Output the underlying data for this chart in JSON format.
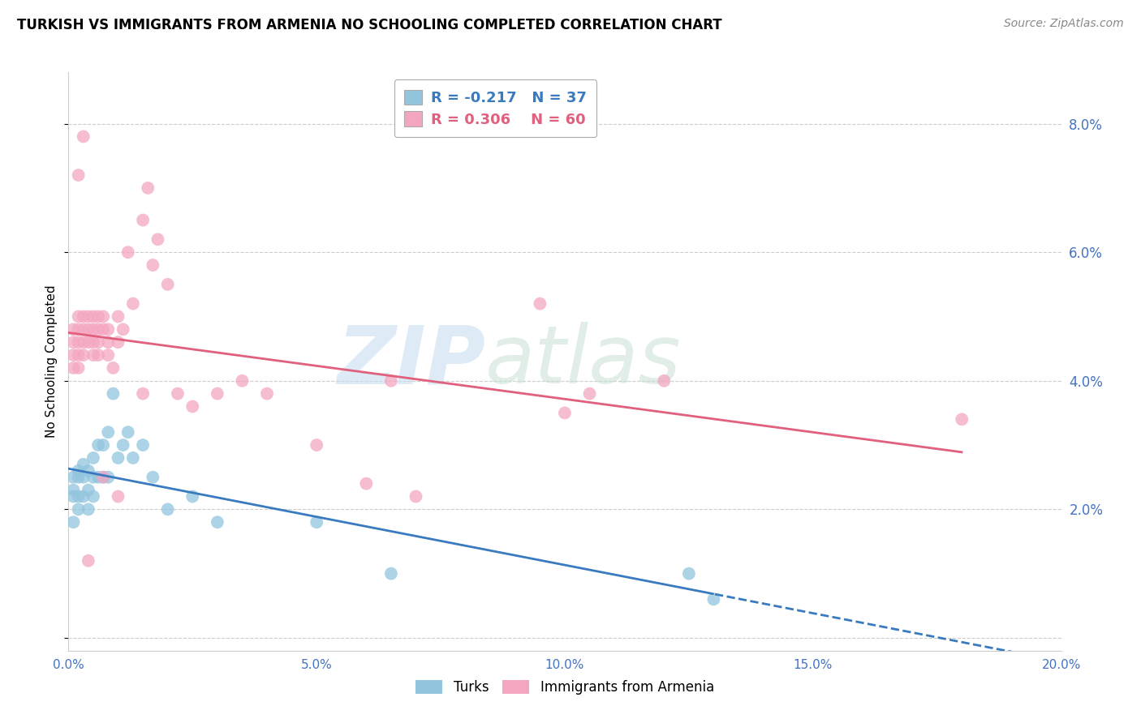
{
  "title": "TURKISH VS IMMIGRANTS FROM ARMENIA NO SCHOOLING COMPLETED CORRELATION CHART",
  "source": "Source: ZipAtlas.com",
  "ylabel": "No Schooling Completed",
  "xlim": [
    0.0,
    0.2
  ],
  "ylim": [
    -0.002,
    0.088
  ],
  "ytick_vals": [
    0.0,
    0.02,
    0.04,
    0.06,
    0.08
  ],
  "ytick_labels": [
    "",
    "2.0%",
    "4.0%",
    "6.0%",
    "8.0%"
  ],
  "xtick_vals": [
    0.0,
    0.05,
    0.1,
    0.15,
    0.2
  ],
  "xtick_labels": [
    "0.0%",
    "5.0%",
    "10.0%",
    "15.0%",
    "20.0%"
  ],
  "blue_R": -0.217,
  "blue_N": 37,
  "pink_R": 0.306,
  "pink_N": 60,
  "blue_color": "#92c5de",
  "pink_color": "#f4a6c0",
  "trend_blue_color": "#3a7abf",
  "trend_pink_color": "#e0607e",
  "tick_color": "#4472c4",
  "watermark": "ZIPatlas",
  "blue_label": "Turks",
  "pink_label": "Immigrants from Armenia",
  "blue_x": [
    0.001,
    0.001,
    0.001,
    0.001,
    0.002,
    0.002,
    0.002,
    0.002,
    0.003,
    0.003,
    0.003,
    0.004,
    0.004,
    0.004,
    0.005,
    0.005,
    0.005,
    0.006,
    0.006,
    0.007,
    0.007,
    0.008,
    0.008,
    0.009,
    0.01,
    0.011,
    0.012,
    0.013,
    0.015,
    0.017,
    0.02,
    0.025,
    0.03,
    0.05,
    0.065,
    0.125,
    0.13
  ],
  "blue_y": [
    0.025,
    0.023,
    0.022,
    0.018,
    0.026,
    0.025,
    0.022,
    0.02,
    0.027,
    0.025,
    0.022,
    0.026,
    0.023,
    0.02,
    0.028,
    0.025,
    0.022,
    0.03,
    0.025,
    0.03,
    0.025,
    0.032,
    0.025,
    0.038,
    0.028,
    0.03,
    0.032,
    0.028,
    0.03,
    0.025,
    0.02,
    0.022,
    0.018,
    0.018,
    0.01,
    0.01,
    0.006
  ],
  "pink_x": [
    0.001,
    0.001,
    0.001,
    0.001,
    0.002,
    0.002,
    0.002,
    0.002,
    0.002,
    0.003,
    0.003,
    0.003,
    0.003,
    0.004,
    0.004,
    0.004,
    0.005,
    0.005,
    0.005,
    0.005,
    0.006,
    0.006,
    0.006,
    0.006,
    0.007,
    0.007,
    0.008,
    0.008,
    0.008,
    0.009,
    0.01,
    0.01,
    0.011,
    0.012,
    0.013,
    0.015,
    0.016,
    0.017,
    0.018,
    0.02,
    0.022,
    0.025,
    0.03,
    0.035,
    0.04,
    0.05,
    0.06,
    0.065,
    0.07,
    0.095,
    0.1,
    0.105,
    0.12,
    0.18,
    0.002,
    0.003,
    0.004,
    0.007,
    0.01,
    0.015
  ],
  "pink_y": [
    0.048,
    0.046,
    0.044,
    0.042,
    0.05,
    0.048,
    0.046,
    0.044,
    0.042,
    0.05,
    0.048,
    0.046,
    0.044,
    0.05,
    0.048,
    0.046,
    0.05,
    0.048,
    0.046,
    0.044,
    0.05,
    0.048,
    0.046,
    0.044,
    0.05,
    0.048,
    0.048,
    0.046,
    0.044,
    0.042,
    0.05,
    0.046,
    0.048,
    0.06,
    0.052,
    0.065,
    0.07,
    0.058,
    0.062,
    0.055,
    0.038,
    0.036,
    0.038,
    0.04,
    0.038,
    0.03,
    0.024,
    0.04,
    0.022,
    0.052,
    0.035,
    0.038,
    0.04,
    0.034,
    0.072,
    0.078,
    0.012,
    0.025,
    0.022,
    0.038
  ]
}
